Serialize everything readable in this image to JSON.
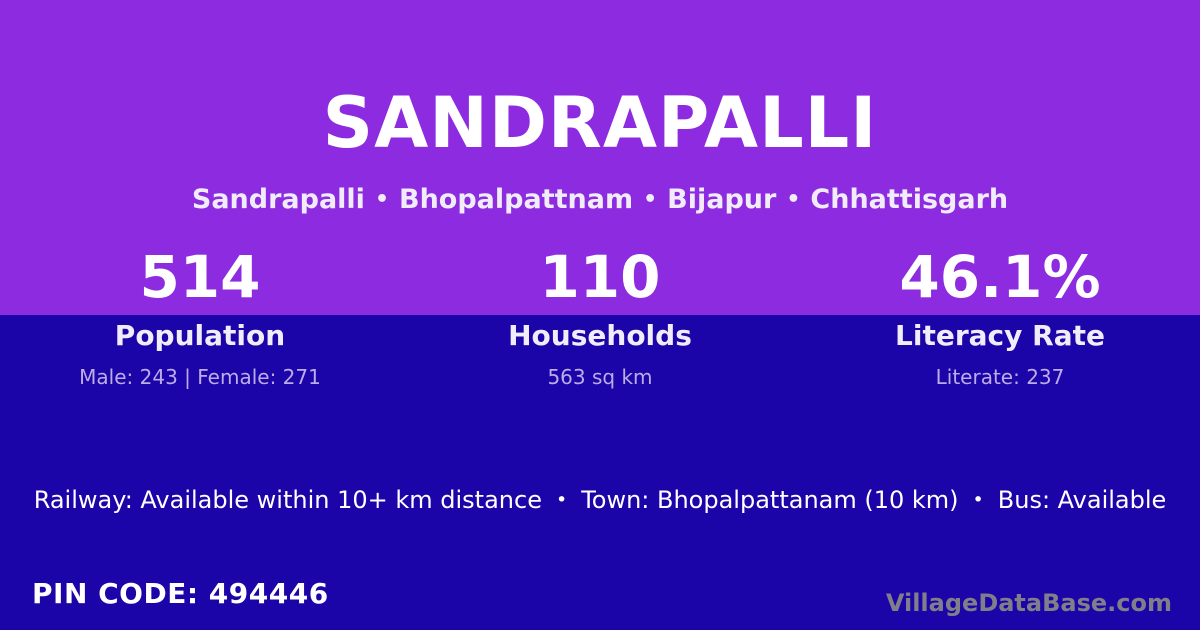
{
  "colors": {
    "top_background": "#8C2BDF",
    "bottom_background": "#1B05A8",
    "text_primary": "#FFFFFF",
    "text_soft": "#F1ECFA",
    "text_sublabel": "#BCACE8",
    "watermark": "#7F7F8A"
  },
  "ui": {
    "bullet": "•"
  },
  "header": {
    "title": "SANDRAPALLI",
    "breadcrumb": [
      "Sandrapalli",
      "Bhopalpattnam",
      "Bijapur",
      "Chhattisgarh"
    ]
  },
  "stats": [
    {
      "value": "514",
      "label": "Population",
      "sub": "Male: 243 | Female: 271"
    },
    {
      "value": "110",
      "label": "Households",
      "sub": "563 sq km"
    },
    {
      "value": "46.1%",
      "label": "Literacy Rate",
      "sub": "Literate: 237"
    }
  ],
  "info": {
    "items": [
      "Railway: Available within 10+ km distance",
      "Town: Bhopalpattanam (10 km)",
      "Bus: Available"
    ]
  },
  "pincode": {
    "label": "PIN CODE:",
    "value": "494446"
  },
  "watermark": {
    "text": "VillageDataBase.com"
  }
}
